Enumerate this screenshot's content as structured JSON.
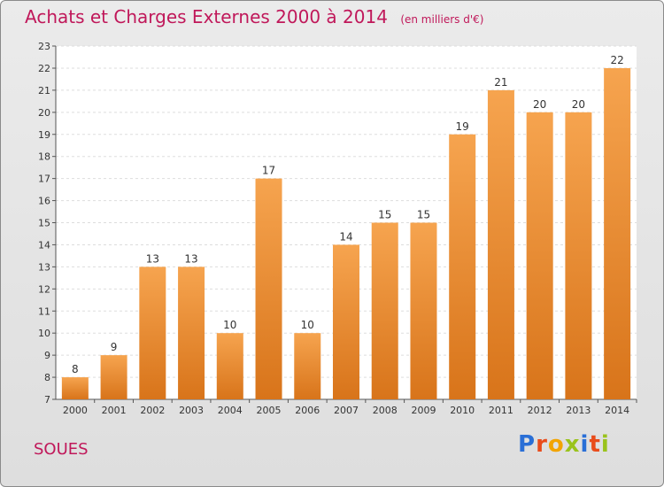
{
  "chart_data": {
    "type": "bar",
    "title": "Achats et Charges Externes 2000 à 2014",
    "unit_label": "(en milliers d'€)",
    "categories": [
      "2000",
      "2001",
      "2002",
      "2003",
      "2004",
      "2005",
      "2006",
      "2007",
      "2008",
      "2009",
      "2010",
      "2011",
      "2012",
      "2013",
      "2014"
    ],
    "values": [
      8,
      9,
      13,
      13,
      10,
      17,
      10,
      14,
      15,
      15,
      19,
      21,
      20,
      20,
      22
    ],
    "ylim": [
      7,
      23
    ],
    "yticks": [
      7,
      8,
      9,
      10,
      11,
      12,
      13,
      14,
      15,
      16,
      17,
      18,
      19,
      20,
      21,
      22,
      23
    ],
    "grid": true,
    "bar_color_top": "#f6a44f",
    "bar_color_bottom": "#d8741a",
    "title_color": "#c0185a"
  },
  "footer": {
    "commune": "SOUES",
    "logo_letters": [
      {
        "ch": "P",
        "color": "#2a6fd6"
      },
      {
        "ch": "r",
        "color": "#e94c1b"
      },
      {
        "ch": "o",
        "color": "#f2a400"
      },
      {
        "ch": "x",
        "color": "#9ac31c"
      },
      {
        "ch": "i",
        "color": "#2a6fd6"
      },
      {
        "ch": "t",
        "color": "#e94c1b"
      },
      {
        "ch": "i",
        "color": "#9ac31c"
      }
    ]
  }
}
